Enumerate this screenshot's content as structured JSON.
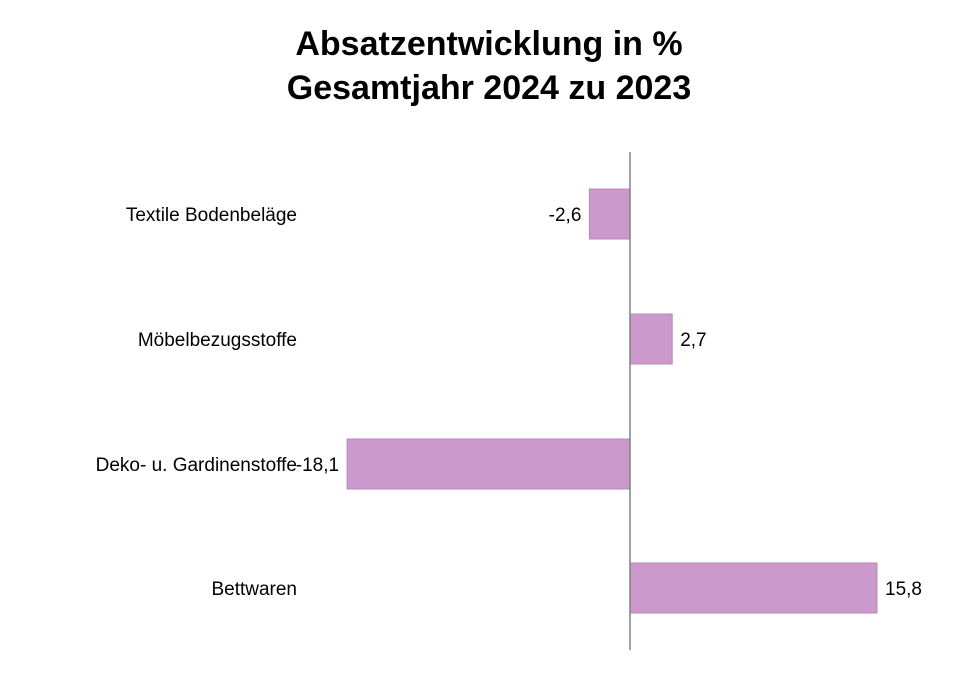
{
  "chart_data": {
    "type": "bar",
    "orientation": "horizontal",
    "title_lines": [
      "Absatzentwicklung in %",
      "Gesamtjahr 2024 zu 2023"
    ],
    "categories": [
      "Textile Bodenbeläge",
      "Möbelbezugsstoffe",
      "Deko- u. Gardinenstoffe",
      "Bettwaren"
    ],
    "values": [
      -2.6,
      2.7,
      -18.1,
      15.8
    ],
    "value_labels": [
      "-2,6",
      "2,7",
      "-18,1",
      "15,8"
    ],
    "xlim": [
      -18.1,
      15.8
    ],
    "grid": false,
    "legend": "none",
    "bar_color": "#cc99cc",
    "bar_edge_color": "#b888b8",
    "axis_color": "#808080"
  }
}
